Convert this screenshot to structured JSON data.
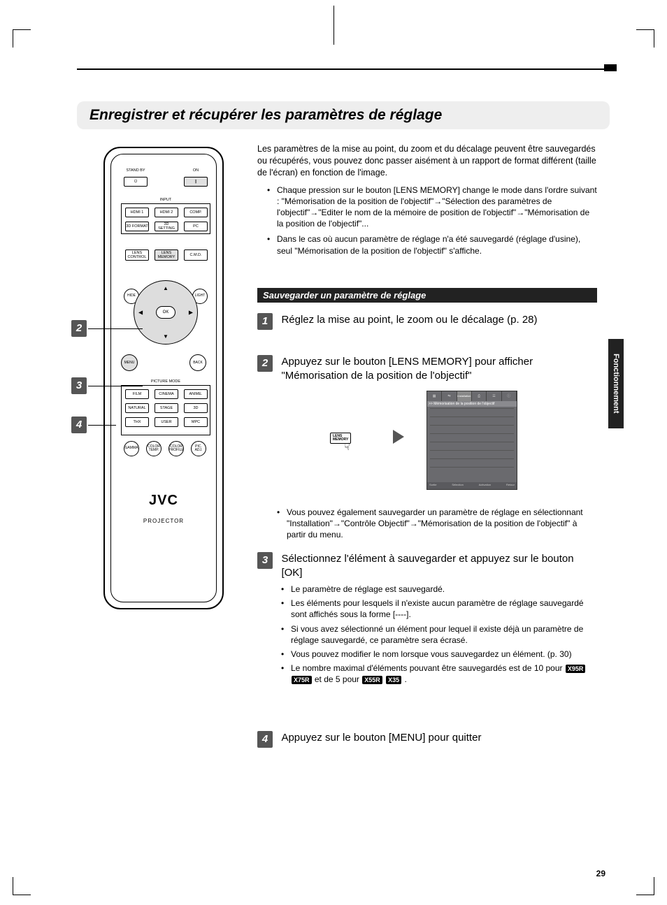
{
  "page": {
    "number": "29",
    "side_tab": "Fonctionnement"
  },
  "heading": "Enregistrer et récupérer les paramètres de réglage",
  "intro": {
    "text": "Les paramètres de la mise au point, du zoom et du décalage peuvent être sauvegardés ou récupérés, vous pouvez donc passer aisément à un rapport de format différent (taille de l'écran) en fonction de l'image.",
    "bullets": [
      "Chaque pression sur le bouton [LENS MEMORY] change le mode dans l'ordre suivant : \"Mémorisation de la position de l'objectif\"→\"Sélection des paramètres de l'objectif\"→\"Editer le nom de la mémoire de position de l'objectif\"→\"Mémorisation de la position de l'objectif\"...",
      "Dans le cas où aucun paramètre de réglage n'a été sauvegardé (réglage d'usine), seul \"Mémorisation de la position de l'objectif\" s'affiche."
    ]
  },
  "subheader": "Sauvegarder un paramètre de réglage",
  "steps": {
    "s1": {
      "num": "1",
      "text": "Réglez la mise au point, le zoom ou le décalage (p. 28)"
    },
    "s2": {
      "num": "2",
      "text": "Appuyez sur le bouton [LENS MEMORY] pour afficher \"Mémorisation de la position de l'objectif\"",
      "note": "Vous pouvez également sauvegarder un paramètre de réglage en sélectionnant \"Installation\"→\"Contrôle Objectif\"→\"Mémorisation de la position de l'objectif\" à partir du menu.",
      "button": "LENS\nMEMORY",
      "osd_title": ">>  Mémorisation de la position de l'objectif",
      "osd_tab": "Installation",
      "osd_foot_left": "Sortie",
      "osd_foot_mid": "Sélection",
      "osd_foot_right1": "Activation",
      "osd_foot_right2": "Retour"
    },
    "s3": {
      "num": "3",
      "text": "Sélectionnez l'élément à sauvegarder et appuyez sur le bouton [OK]",
      "bullets": [
        "Le paramètre de réglage est sauvegardé.",
        "Les éléments pour lesquels il n'existe aucun paramètre de réglage sauvegardé sont affichés sous la forme [----].",
        "Si vous avez sélectionné un élément pour lequel il existe déjà un paramètre de réglage sauvegardé, ce paramètre sera écrasé.",
        "Vous pouvez modifier le nom lorsque vous sauvegardez un élément. (p. 30)"
      ],
      "last_bullet_pre": "Le nombre maximal d'éléments pouvant être sauvegardés est de 10 pour ",
      "last_bullet_mid": " et de 5 pour ",
      "last_bullet_post": ".",
      "badges_a": [
        "X95R",
        "X75R"
      ],
      "badges_b": [
        "X55R",
        "X35"
      ]
    },
    "s4": {
      "num": "4",
      "text": "Appuyez sur le bouton [MENU] pour quitter"
    }
  },
  "remote": {
    "standby": "STAND BY",
    "standby_icon": "⏻",
    "on": "ON",
    "on_icon": "❙",
    "input": "INPUT",
    "hdmi1": "HDMI 1",
    "hdmi2": "HDMI 2",
    "comp": "COMP.",
    "fmt3d": "3D FORMAT",
    "set3d": "3D SETTING",
    "pc": "PC",
    "lensctrl": "LENS\nCONTROL",
    "lensmem": "LENS\nMEMORY",
    "cmd": "C.M.D.",
    "hide": "HIDE",
    "light": "LIGHT",
    "ok": "OK",
    "menu": "MENU",
    "back": "BACK",
    "pm": "PICTURE MODE",
    "film": "FILM",
    "cinema": "CINEMA",
    "anime": "ANIME.",
    "natural": "NATURAL",
    "stage": "STAGE",
    "r3d": "3D",
    "thx": "THX",
    "user": "USER",
    "mpc": "MPC",
    "gamma": "GAMMA",
    "ctemp": "COLOR\nTEMP.",
    "cprof": "COLOR\nPROFILE",
    "padj": "PIC.\nADJ.",
    "brand": "JVC",
    "projector": "PROJECTOR"
  },
  "callouts": {
    "c2": "2",
    "c3": "3",
    "c4": "4"
  }
}
